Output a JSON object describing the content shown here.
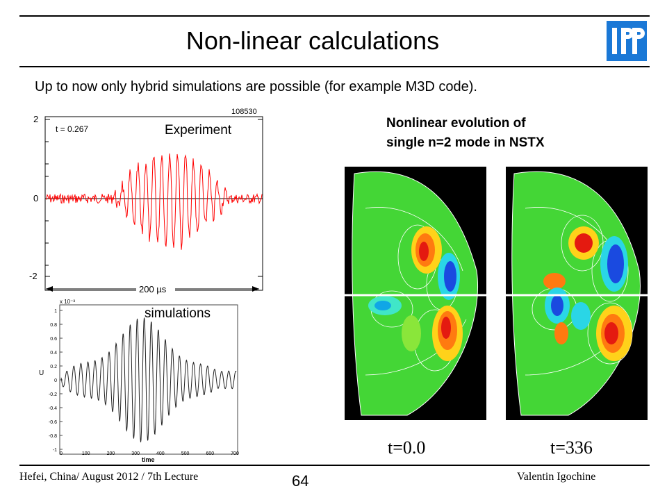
{
  "slide": {
    "title": "Non-linear calculations",
    "subtitle": "Up to now only hybrid simulations are possible (for example M3D code).",
    "logo_alt": "IPP logo",
    "logo_text": "IPP",
    "accent_color": "#1a78d6"
  },
  "experiment_plot": {
    "label": "Experiment",
    "shot": "108530",
    "time_text": "t = 0.267",
    "y_ticks": [
      "2",
      "0",
      "-2"
    ],
    "scale_label": "200 µs",
    "trace_color": "#ff0000"
  },
  "simulation_plot": {
    "label": "simulations",
    "y_axis_label": "U",
    "y_exponent": "x 10⁻³",
    "y_ticks": [
      "1",
      "0.8",
      "0.6",
      "0.4",
      "0.2",
      "0",
      "-0.2",
      "-0.4",
      "-0.6",
      "-0.8",
      "-1"
    ],
    "x_ticks": [
      "0",
      "100",
      "200",
      "300",
      "400",
      "500",
      "600",
      "700"
    ],
    "x_axis_label": "time"
  },
  "right_panel": {
    "caption_line1": "Nonlinear evolution of",
    "caption_line2": "single n=2 mode in NSTX",
    "left_label": "t=0.0",
    "right_label": "t=336"
  },
  "footer": {
    "left": "Hefei, China/ August 2012 / 7th Lecture",
    "page": "64",
    "right": "Valentin Igochine"
  }
}
